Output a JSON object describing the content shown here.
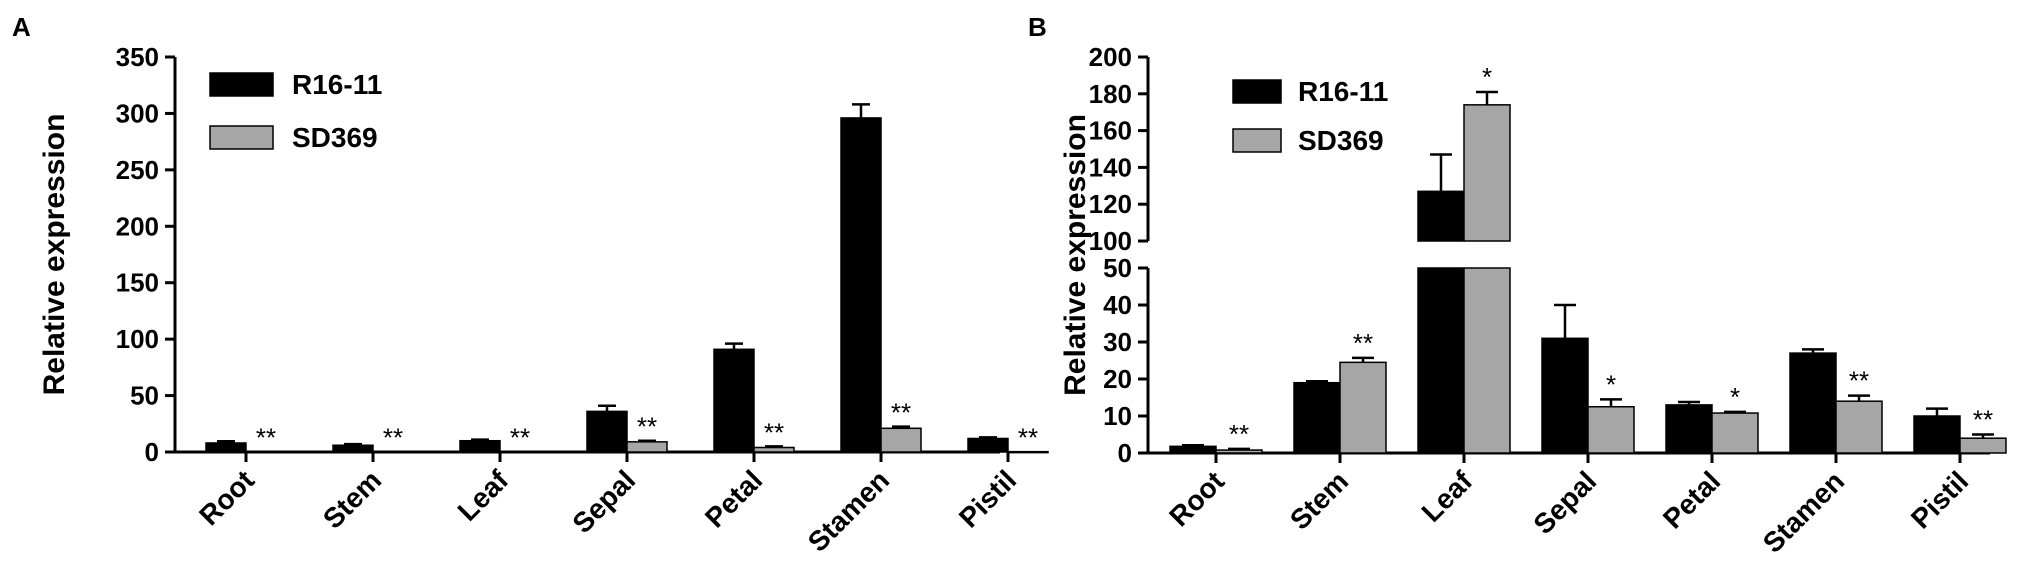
{
  "chart_data": [
    {
      "panel_label": "A",
      "type": "bar",
      "categories": [
        "Root",
        "Stem",
        "Leaf",
        "Sepal",
        "Petal",
        "Stamen",
        "Pistil"
      ],
      "ylabel": "Relative expression",
      "ylim": [
        0,
        350
      ],
      "yticks": [
        "0",
        "50",
        "100",
        "150",
        "200",
        "250",
        "300",
        "350"
      ],
      "legend_position": "top-left",
      "series": [
        {
          "name": "R16-11",
          "color": "#000000",
          "values": [
            8,
            6,
            10,
            36,
            91,
            296,
            12
          ],
          "errors": [
            1.5,
            1,
            1,
            5,
            5,
            12,
            1
          ],
          "sig": [
            "",
            "",
            "",
            "",
            "",
            "",
            ""
          ]
        },
        {
          "name": "SD369",
          "color": "#a6a6a6",
          "values": [
            0.3,
            0.3,
            0.5,
            9,
            4,
            21,
            0.3
          ],
          "errors": [
            0,
            0,
            0,
            1,
            1,
            1.5,
            0
          ],
          "sig": [
            "**",
            "**",
            "**",
            "**",
            "**",
            "**",
            "**"
          ]
        }
      ]
    },
    {
      "panel_label": "B",
      "type": "bar",
      "categories": [
        "Root",
        "Stem",
        "Leaf",
        "Sepal",
        "Petal",
        "Stamen",
        "Pistil"
      ],
      "ylabel": "Relative expression",
      "broken_axis": {
        "lower": [
          0,
          50
        ],
        "upper": [
          100,
          200
        ]
      },
      "yticks": [
        "0",
        "10",
        "20",
        "30",
        "40",
        "50",
        "100",
        "120",
        "140",
        "160",
        "180",
        "200"
      ],
      "legend_position": "top-left",
      "series": [
        {
          "name": "R16-11",
          "color": "#000000",
          "values": [
            1.8,
            19,
            127,
            31,
            13,
            27,
            10
          ],
          "errors": [
            0.3,
            0.4,
            20,
            9,
            0.8,
            1,
            2
          ],
          "sig": [
            "",
            "",
            "",
            "",
            "",
            "",
            ""
          ]
        },
        {
          "name": "SD369",
          "color": "#a6a6a6",
          "values": [
            0.8,
            24.5,
            174,
            12.5,
            10.8,
            14,
            4
          ],
          "errors": [
            0.3,
            1.2,
            7,
            2,
            0.3,
            1.5,
            1
          ],
          "sig": [
            "**",
            "**",
            "*",
            "*",
            "*",
            "**",
            "**"
          ]
        }
      ]
    }
  ]
}
